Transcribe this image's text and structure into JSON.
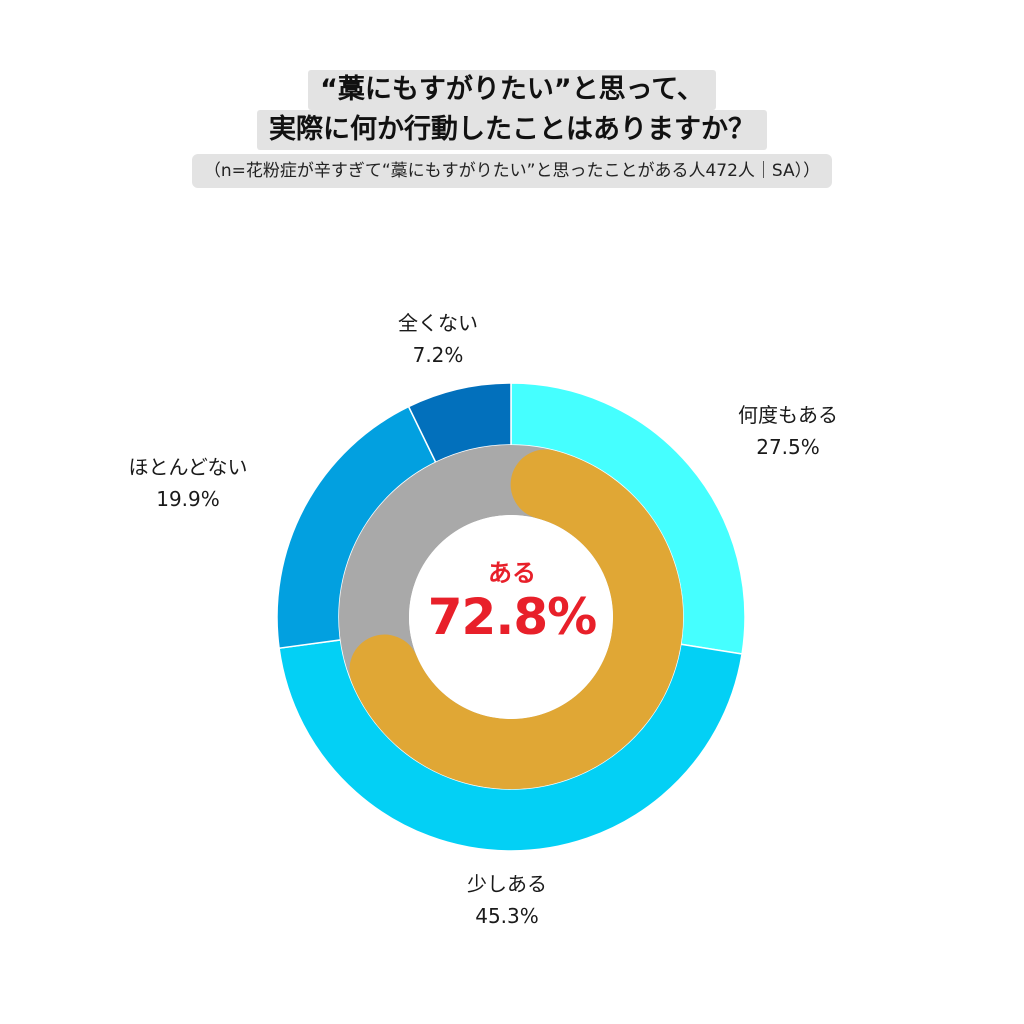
{
  "title": {
    "line1": "“藁にもすがりたい”と思って、",
    "line2": "実際に何か行動したことはありますか？",
    "subtitle": "（n=花粉症が辛すぎて“藁にもすがりたい”と思ったことがある人472人｜SA））"
  },
  "chart_data": {
    "type": "pie",
    "variant": "double-donut",
    "outer_ring": {
      "slices": [
        {
          "label": "何度もある",
          "value": 27.5,
          "value_label": "27.5%",
          "color": "#45ffff"
        },
        {
          "label": "少しある",
          "value": 45.3,
          "value_label": "45.3%",
          "color": "#03d0f5"
        },
        {
          "label": "ほとんどない",
          "value": 19.9,
          "value_label": "19.9%",
          "color": "#02a0e0"
        },
        {
          "label": "全くない",
          "value": 7.2,
          "value_label": "7.2%",
          "color": "#0270bc"
        }
      ],
      "start": "12 o'clock",
      "direction": "clockwise"
    },
    "inner_ring": {
      "highlight_value": 72.8,
      "highlight_color": "#e0a735",
      "track_color": "#a9a9a9",
      "rounded_caps": true
    },
    "center": {
      "label": "ある",
      "value_label": "72.8%",
      "color": "#e8202a"
    }
  }
}
